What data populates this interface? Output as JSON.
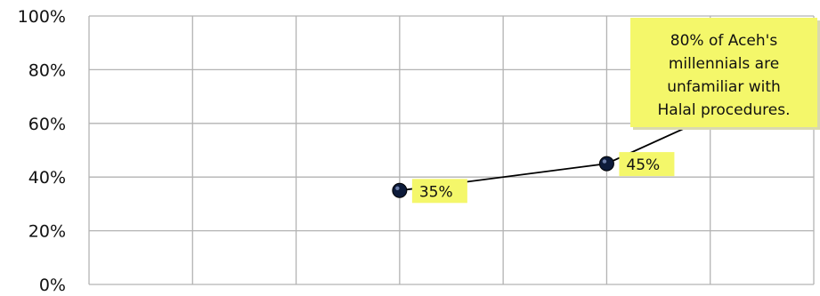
{
  "chart_data": {
    "type": "line",
    "x": [
      3,
      5,
      7
    ],
    "xlim": [
      0,
      7
    ],
    "ylim": [
      0,
      100
    ],
    "y_ticks": [
      0,
      20,
      40,
      60,
      80,
      100
    ],
    "y_tick_labels": [
      "0%",
      "20%",
      "40%",
      "60%",
      "80%",
      "100%"
    ],
    "grid": true,
    "series": [
      {
        "values": [
          35,
          45,
          80
        ],
        "color": "#000000",
        "marker_color": "#0d1b3a"
      }
    ],
    "point_labels": [
      "35%",
      "45%"
    ],
    "annotation": {
      "lines": [
        "80% of Aceh's",
        "millennials are",
        "unfamiliar with",
        "Halal procedures."
      ],
      "fill": "#f4f76a"
    },
    "label_fill": "#f4f76a"
  }
}
